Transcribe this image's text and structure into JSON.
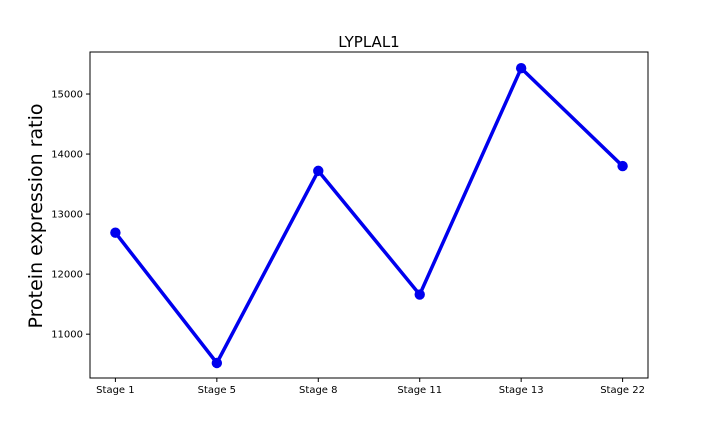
{
  "chart_data": {
    "type": "line",
    "title": "LYPLAL1",
    "xlabel": "",
    "ylabel": "Protein expression ratio",
    "categories": [
      "Stage 1",
      "Stage 5",
      "Stage 8",
      "Stage 11",
      "Stage 13",
      "Stage 22"
    ],
    "series": [
      {
        "values": [
          12690,
          10520,
          13720,
          11660,
          15430,
          13800
        ],
        "color": "#0000ee",
        "marker": "circle"
      }
    ],
    "ylim": [
      10270,
      15700
    ],
    "yticks": [
      11000,
      12000,
      13000,
      14000,
      15000
    ],
    "ytick_labels": [
      "11000",
      "12000",
      "13000",
      "14000",
      "15000"
    ],
    "grid": false,
    "legend": "none"
  }
}
